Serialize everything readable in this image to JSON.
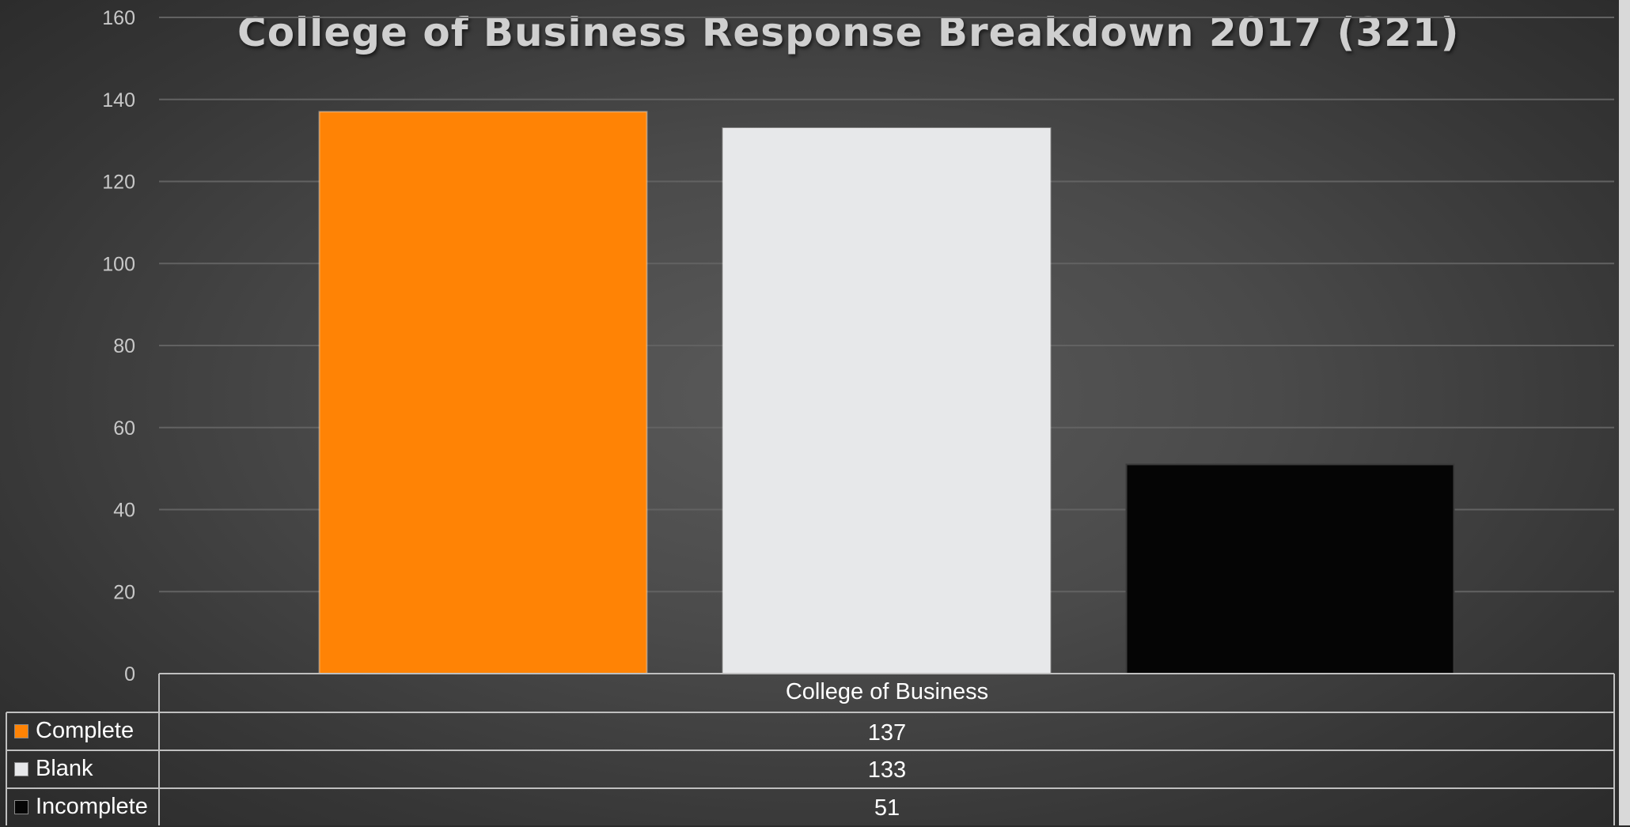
{
  "chart_data": {
    "type": "bar",
    "title": "College of Business Response Breakdown 2017 (321)",
    "categories": [
      "College of Business"
    ],
    "series": [
      {
        "name": "Complete",
        "values": [
          137
        ],
        "color": "#ff8305"
      },
      {
        "name": "Blank",
        "values": [
          133
        ],
        "color": "#e7e8ea"
      },
      {
        "name": "Incomplete",
        "values": [
          51
        ],
        "color": "#050505"
      }
    ],
    "ylim": [
      0,
      160
    ],
    "yticks": [
      "0",
      "20",
      "40",
      "60",
      "80",
      "100",
      "120",
      "140",
      "160"
    ],
    "grid": true,
    "legend": "data-table"
  },
  "table": {
    "header": "College of Business",
    "rows": [
      {
        "label": "Complete",
        "value": "137"
      },
      {
        "label": "Blank",
        "value": "133"
      },
      {
        "label": "Incomplete",
        "value": "51"
      }
    ]
  }
}
